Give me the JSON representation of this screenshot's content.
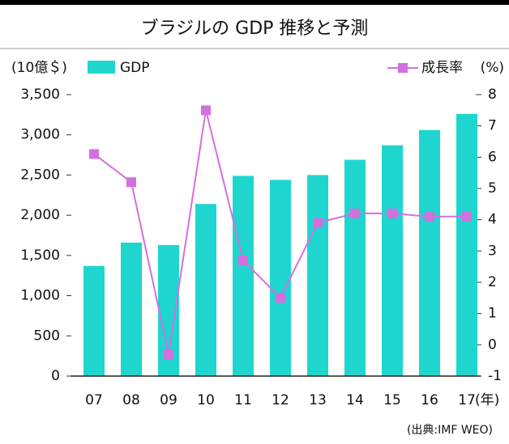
{
  "chart_data": {
    "type": "bar_line",
    "title": "ブラジルの GDP 推移と予測",
    "y_label": "(10億＄)",
    "y2_label": "(%)",
    "x_label": "(年)",
    "source": "(出典:IMF WEO)",
    "categories": [
      "07",
      "08",
      "09",
      "10",
      "11",
      "12",
      "13",
      "14",
      "15",
      "16",
      "17"
    ],
    "series": [
      {
        "name": "GDP",
        "type": "bar",
        "color": "#1fd6cf",
        "values": [
          1370,
          1660,
          1630,
          2140,
          2490,
          2440,
          2500,
          2690,
          2870,
          3060,
          3260
        ]
      },
      {
        "name": "成長率",
        "type": "line",
        "axis": "y2",
        "color": "#d46fe0",
        "values": [
          6.1,
          5.2,
          -0.3,
          7.5,
          2.7,
          1.5,
          3.9,
          4.2,
          4.2,
          4.1,
          4.1
        ]
      }
    ],
    "ylim": [
      0,
      3500
    ],
    "yticks": [
      0,
      500,
      {
        "value": 1000,
        "label": "1,000"
      },
      {
        "value": 1500,
        "label": "1,500"
      },
      {
        "value": 2000,
        "label": "2,000"
      },
      {
        "value": 2500,
        "label": "2,500"
      },
      {
        "value": 3000,
        "label": "3,000"
      },
      {
        "value": 3500,
        "label": "3,500"
      }
    ],
    "y2lim": [
      -1,
      8
    ],
    "y2ticks": [
      -1,
      0,
      1,
      2,
      3,
      4,
      5,
      6,
      7,
      8
    ]
  }
}
